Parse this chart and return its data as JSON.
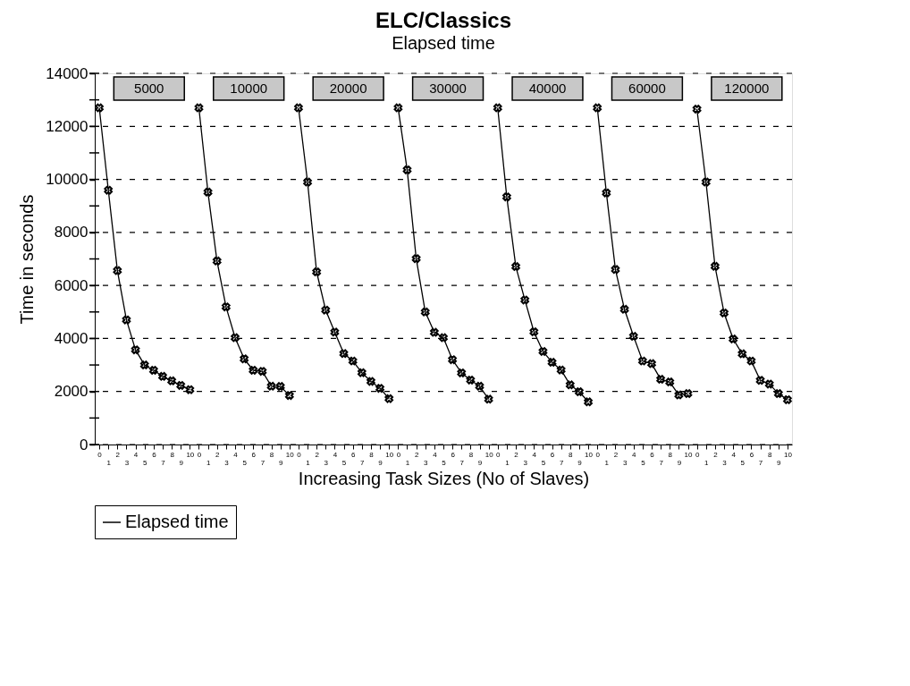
{
  "chart_data": {
    "type": "line",
    "title": "ELC/Classics",
    "subtitle": "Elapsed time",
    "xlabel": "Increasing Task Sizes (No of Slaves)",
    "ylabel": "Time in seconds",
    "annotations": [
      "5000",
      "10000",
      "20000",
      "30000",
      "40000",
      "60000",
      "120000"
    ],
    "categories": [
      "0",
      "1",
      "2",
      "3",
      "4",
      "5",
      "6",
      "7",
      "8",
      "9",
      "10",
      "0",
      "1",
      "2",
      "3",
      "4",
      "5",
      "6",
      "7",
      "8",
      "9",
      "10",
      "0",
      "1",
      "2",
      "3",
      "4",
      "5",
      "6",
      "7",
      "8",
      "9",
      "10",
      "0",
      "1",
      "2",
      "3",
      "4",
      "5",
      "6",
      "7",
      "8",
      "9",
      "10",
      "0",
      "1",
      "2",
      "3",
      "4",
      "5",
      "6",
      "7",
      "8",
      "9",
      "10",
      "0",
      "1",
      "2",
      "3",
      "4",
      "5",
      "6",
      "7",
      "8",
      "9",
      "10",
      "0",
      "1",
      "2",
      "3",
      "4",
      "5",
      "6",
      "7",
      "8",
      "9",
      "10"
    ],
    "series": [
      {
        "name": "Elapsed time",
        "color": "#000000",
        "values": [
          12700,
          9590,
          6560,
          4700,
          3570,
          3000,
          2800,
          2570,
          2400,
          2230,
          2070,
          null,
          null,
          null,
          null,
          null,
          null,
          null,
          null,
          null,
          null,
          null,
          null,
          null,
          null,
          null,
          null,
          null,
          null,
          null,
          null,
          null,
          null,
          null,
          null,
          null,
          null,
          null,
          null,
          null,
          null,
          null,
          null,
          null,
          null,
          null,
          null,
          null,
          null,
          null,
          null,
          null,
          null,
          null,
          null,
          null,
          null,
          null,
          null,
          null,
          null,
          null,
          null,
          null,
          null,
          null,
          null,
          null,
          null,
          null,
          null,
          null,
          null,
          null,
          null,
          null,
          null
        ]
      },
      {
        "color": "#000000",
        "values": [
          null,
          null,
          null,
          null,
          null,
          null,
          null,
          null,
          null,
          null,
          null,
          12700,
          9520,
          6920,
          5190,
          4030,
          3230,
          2800,
          2760,
          2200,
          2190,
          1850,
          null,
          null,
          null,
          null,
          null,
          null,
          null,
          null,
          null,
          null,
          null,
          null,
          null,
          null,
          null,
          null,
          null,
          null,
          null,
          null,
          null,
          null,
          null,
          null,
          null,
          null,
          null,
          null,
          null,
          null,
          null,
          null,
          null,
          null,
          null,
          null,
          null,
          null,
          null,
          null,
          null,
          null,
          null,
          null,
          null,
          null,
          null,
          null,
          null,
          null,
          null,
          null,
          null,
          null,
          null
        ]
      },
      {
        "color": "#000000",
        "values": [
          null,
          null,
          null,
          null,
          null,
          null,
          null,
          null,
          null,
          null,
          null,
          null,
          null,
          null,
          null,
          null,
          null,
          null,
          null,
          null,
          null,
          null,
          12700,
          9900,
          6510,
          5070,
          4240,
          3430,
          3150,
          2710,
          2380,
          2120,
          1730,
          null,
          null,
          null,
          null,
          null,
          null,
          null,
          null,
          null,
          null,
          null,
          null,
          null,
          null,
          null,
          null,
          null,
          null,
          null,
          null,
          null,
          null,
          null,
          null,
          null,
          null,
          null,
          null,
          null,
          null,
          null,
          null,
          null,
          null,
          null,
          null,
          null,
          null,
          null,
          null,
          null,
          null,
          null,
          null
        ]
      },
      {
        "color": "#000000",
        "values": [
          null,
          null,
          null,
          null,
          null,
          null,
          null,
          null,
          null,
          null,
          null,
          null,
          null,
          null,
          null,
          null,
          null,
          null,
          null,
          null,
          null,
          null,
          null,
          null,
          null,
          null,
          null,
          null,
          null,
          null,
          null,
          null,
          null,
          12700,
          10360,
          7010,
          5000,
          4230,
          4030,
          3200,
          2700,
          2430,
          2200,
          1710,
          null,
          null,
          null,
          null,
          null,
          null,
          null,
          null,
          null,
          null,
          null,
          null,
          null,
          null,
          null,
          null,
          null,
          null,
          null,
          null,
          null,
          null,
          null,
          null,
          null,
          null,
          null,
          null,
          null,
          null,
          null,
          null,
          null
        ]
      },
      {
        "color": "#000000",
        "values": [
          null,
          null,
          null,
          null,
          null,
          null,
          null,
          null,
          null,
          null,
          null,
          null,
          null,
          null,
          null,
          null,
          null,
          null,
          null,
          null,
          null,
          null,
          null,
          null,
          null,
          null,
          null,
          null,
          null,
          null,
          null,
          null,
          null,
          null,
          null,
          null,
          null,
          null,
          null,
          null,
          null,
          null,
          null,
          null,
          12700,
          9340,
          6710,
          5450,
          4250,
          3510,
          3100,
          2810,
          2250,
          1990,
          1610,
          null,
          null,
          null,
          null,
          null,
          null,
          null,
          null,
          null,
          null,
          null,
          null,
          null,
          null,
          null,
          null,
          null,
          null,
          null,
          null,
          null,
          null
        ]
      },
      {
        "color": "#000000",
        "values": [
          null,
          null,
          null,
          null,
          null,
          null,
          null,
          null,
          null,
          null,
          null,
          null,
          null,
          null,
          null,
          null,
          null,
          null,
          null,
          null,
          null,
          null,
          null,
          null,
          null,
          null,
          null,
          null,
          null,
          null,
          null,
          null,
          null,
          null,
          null,
          null,
          null,
          null,
          null,
          null,
          null,
          null,
          null,
          null,
          null,
          null,
          null,
          null,
          null,
          null,
          null,
          null,
          null,
          null,
          null,
          12700,
          9490,
          6600,
          5100,
          4080,
          3150,
          3050,
          2460,
          2360,
          1870,
          1920,
          null,
          null,
          null,
          null,
          null,
          null,
          null,
          null,
          null,
          null,
          null
        ]
      },
      {
        "color": "#000000",
        "values": [
          null,
          null,
          null,
          null,
          null,
          null,
          null,
          null,
          null,
          null,
          null,
          null,
          null,
          null,
          null,
          null,
          null,
          null,
          null,
          null,
          null,
          null,
          null,
          null,
          null,
          null,
          null,
          null,
          null,
          null,
          null,
          null,
          null,
          null,
          null,
          null,
          null,
          null,
          null,
          null,
          null,
          null,
          null,
          null,
          null,
          null,
          null,
          null,
          null,
          null,
          null,
          null,
          null,
          null,
          null,
          null,
          null,
          null,
          null,
          null,
          null,
          null,
          null,
          null,
          null,
          null,
          12650,
          9900,
          6720,
          4960,
          3980,
          3420,
          3150,
          2420,
          2280,
          1920,
          1690
        ]
      }
    ],
    "ylim": [
      0,
      14000
    ],
    "yticks": [
      0,
      {
        "value": 1000,
        "label": null
      },
      2000,
      {
        "value": 3000,
        "label": null
      },
      4000,
      {
        "value": 5000,
        "label": null
      },
      6000,
      {
        "value": 7000,
        "label": null
      },
      8000,
      {
        "value": 9000,
        "label": null
      },
      10000,
      {
        "value": 11000,
        "label": null
      },
      12000,
      {
        "value": 13000,
        "label": null
      },
      14000
    ],
    "grid": "y",
    "legend": "bottom",
    "marker": "cross",
    "line_style": "solid"
  }
}
